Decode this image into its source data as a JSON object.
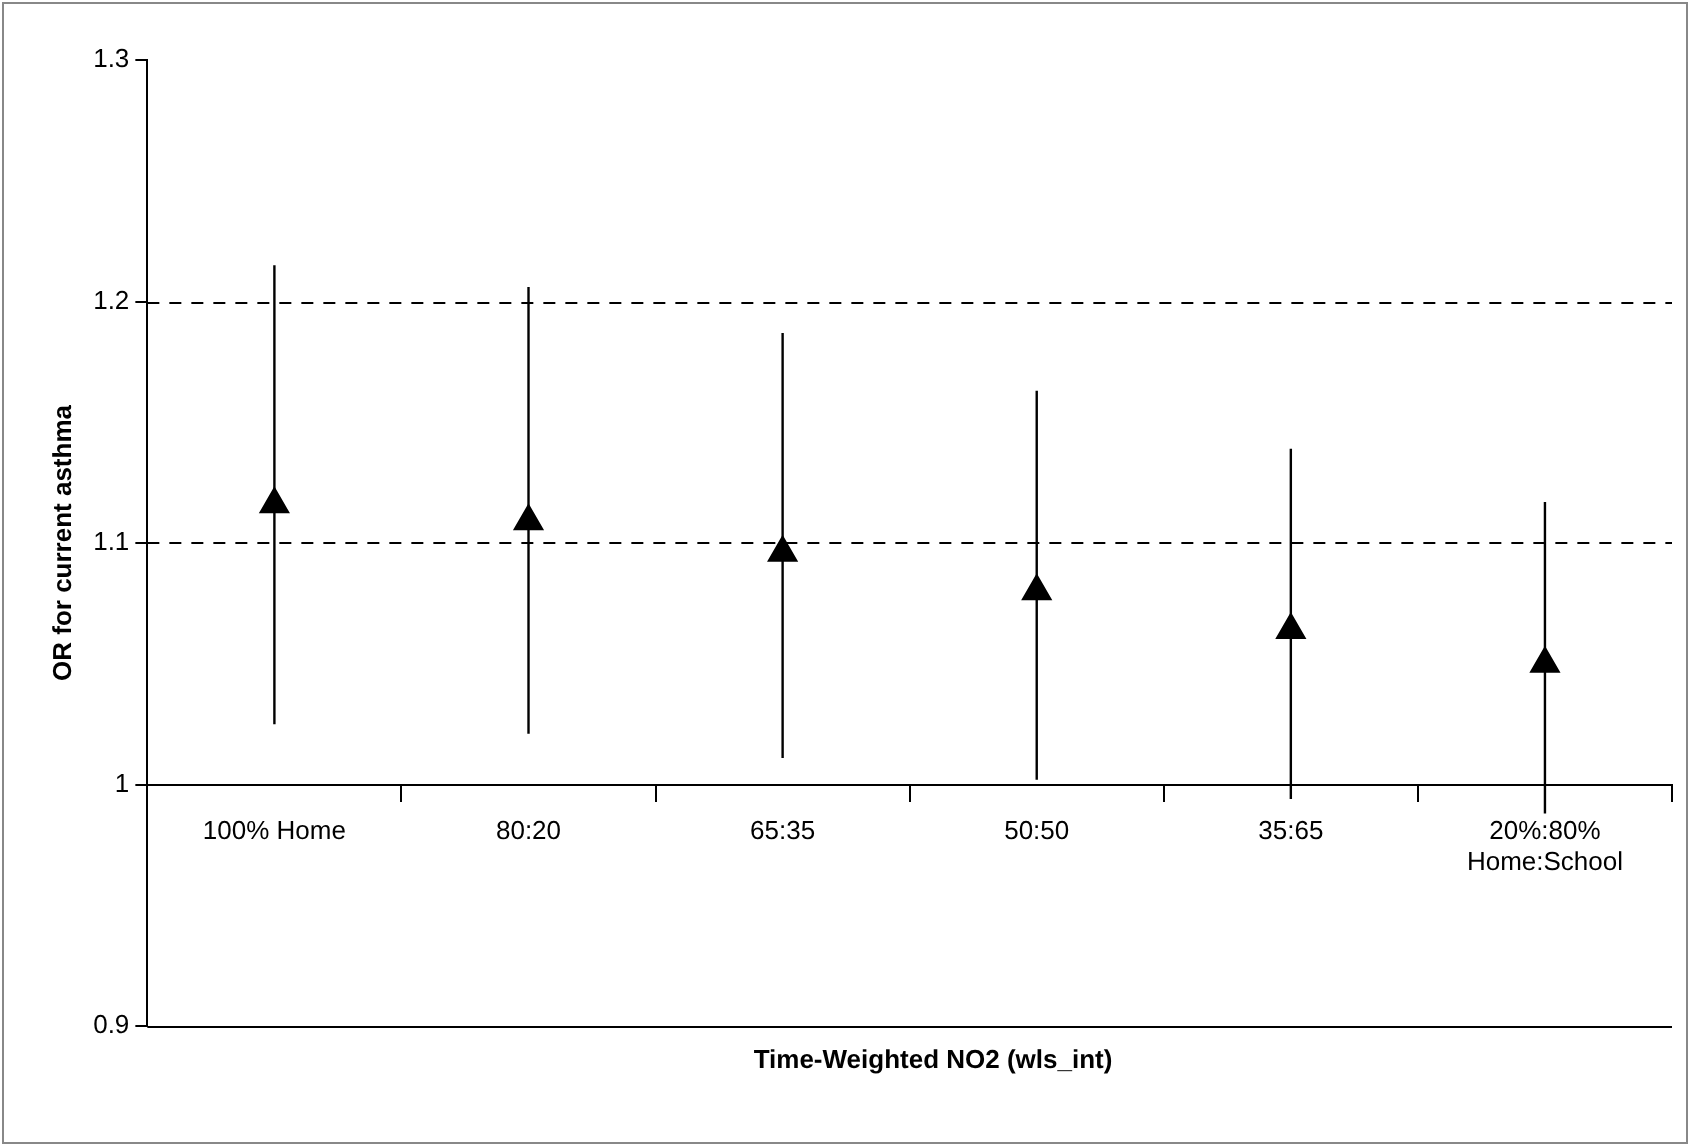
{
  "chart_data": {
    "type": "scatter",
    "ylabel": "OR for current asthma",
    "xlabel": "Time-Weighted NO2 (wls_int)",
    "categories": [
      "100% Home",
      "80:20",
      "65:35",
      "50:50",
      "35:65",
      "20%:80%\nHome:School"
    ],
    "series": [
      {
        "color": "#000000",
        "values": [
          1.116,
          1.109,
          1.096,
          1.08,
          1.064,
          1.05
        ],
        "errors": [
          [
            1.025,
            1.215
          ],
          [
            1.021,
            1.206
          ],
          [
            1.011,
            1.187
          ],
          [
            1.002,
            1.163
          ],
          [
            0.994,
            1.139
          ],
          [
            0.988,
            1.117
          ]
        ]
      }
    ],
    "ylim": [
      0.9,
      1.3
    ],
    "yticks": [
      0.9,
      1,
      1.1,
      1.2,
      1.3
    ],
    "grid": "y",
    "marker": "triangle",
    "legend": false
  }
}
